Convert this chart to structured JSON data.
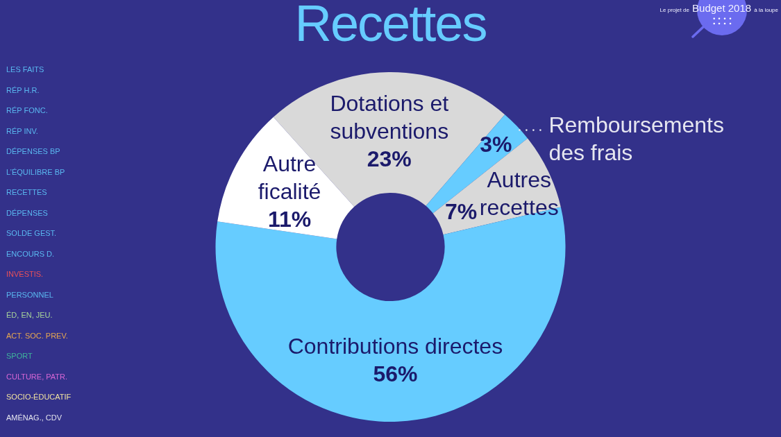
{
  "chart_data": {
    "type": "donut",
    "title": "Recettes",
    "categories": [
      "Dotations et subventions",
      "Remboursements des frais",
      "Autres recettes",
      "Contributions directes",
      "Autre ficalité"
    ],
    "values": [
      23,
      3,
      7,
      56,
      11
    ],
    "colors": [
      "#d9d9d9",
      "#66ccff",
      "#d9d9d9",
      "#66ccff",
      "#ffffff"
    ],
    "value_labels": [
      "23%",
      "3%",
      "7%",
      "56%",
      "11%"
    ],
    "annotations": [
      "Le projet de Budget 2018 à la loupe",
      "LES FAITS",
      "RÉP H.R.",
      "RÉP FONC.",
      "RÉP INV.",
      "DÉPENSES BP",
      "L’ÉQUILIBRE BP",
      "RECETTES",
      "DÉPENSES",
      "SOLDE GEST.",
      "ENCOURS D.",
      "INVESTIS.",
      "PERSONNEL",
      "ÉD, EN, JEU.",
      "ACT. SOC. PREV.",
      "SPORT",
      "CULTURE, PATR.",
      "SOCIO-ÉDUCATIF",
      "AMÉNAG., CDV"
    ]
  }
}
